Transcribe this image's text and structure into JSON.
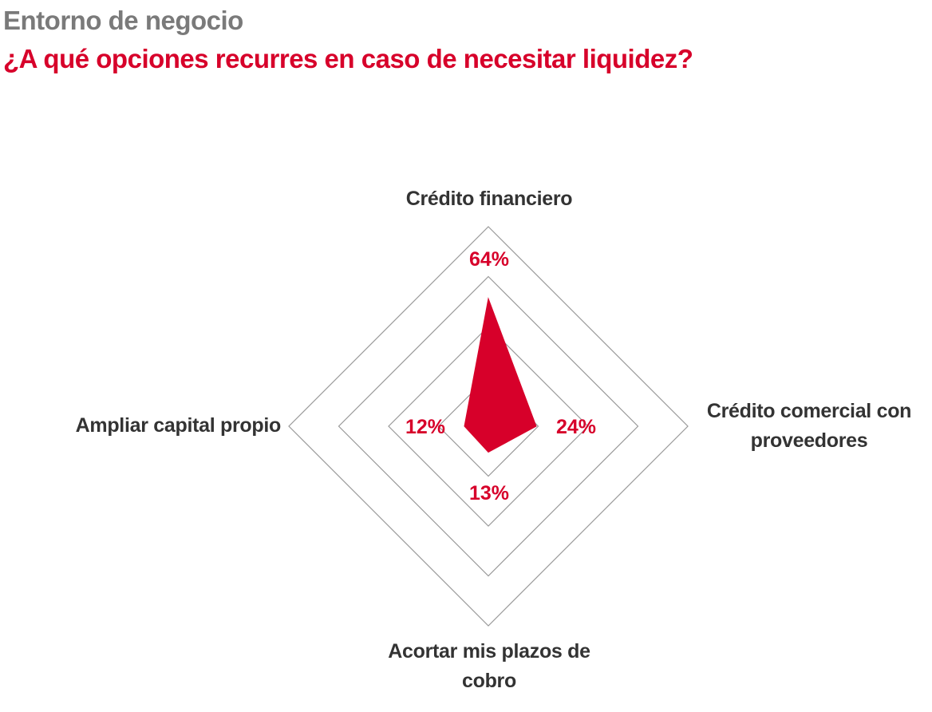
{
  "header": {
    "section": "Entorno de negocio",
    "question": "¿A qué opciones recurres en caso de necesitar liquidez?"
  },
  "colors": {
    "accent": "#d7002a",
    "grid": "#9a9a9a",
    "label": "#333333",
    "section": "#7a7a7a"
  },
  "chart_data": {
    "type": "radar",
    "title": "¿A qué opciones recurres en caso de necesitar liquidez?",
    "categories": [
      {
        "lines": [
          "Crédito financiero"
        ]
      },
      {
        "lines": [
          "Crédito comercial con",
          "proveedores"
        ]
      },
      {
        "lines": [
          "Acortar mis plazos de",
          "cobro"
        ]
      },
      {
        "lines": [
          "Ampliar capital propio"
        ]
      }
    ],
    "series": [
      {
        "values": [
          64,
          24,
          13,
          12
        ],
        "labels": [
          "64%",
          "24%",
          "13%",
          "12%"
        ]
      }
    ],
    "rlim": [
      0,
      100
    ],
    "grid_rings": [
      0.25,
      0.5,
      0.75,
      1.0
    ],
    "grid": true,
    "legend": "none"
  }
}
